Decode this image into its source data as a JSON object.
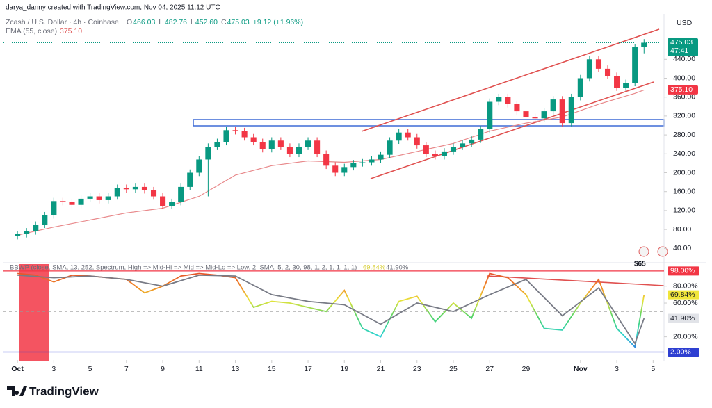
{
  "header": {
    "attribution": "darya_danny created with TradingView.com, Nov 04, 2025 11:12 UTC",
    "symbol": "Zcash / U.S. Dollar · 4h · Coinbase",
    "ohlc": [
      {
        "label": "O",
        "value": "466.03"
      },
      {
        "label": "H",
        "value": "482.76"
      },
      {
        "label": "L",
        "value": "452.60"
      },
      {
        "label": "C",
        "value": "475.03"
      }
    ],
    "change": "+9.12 (+1.96%)",
    "ema_legend": "EMA (55, close)",
    "ema_value": "375.10",
    "currency": "USD",
    "countdown": "47:41",
    "badge": "$65"
  },
  "footer": {
    "brand": "TradingView"
  },
  "chart_data": [
    {
      "type": "candlestick",
      "up_color": "#089981",
      "down_color": "#f23645",
      "x": [
        0,
        0.5,
        1,
        1.5,
        2,
        2.5,
        3,
        3.5,
        4,
        4.5,
        5,
        5.5,
        6,
        6.5,
        7,
        7.5,
        8,
        8.5,
        9,
        9.5,
        10,
        10.5,
        11,
        11.5,
        12,
        12.5,
        13,
        13.5,
        14,
        14.5,
        15,
        15.5,
        16,
        16.5,
        17,
        17.5,
        18,
        18.5,
        19,
        19.5,
        20,
        20.5,
        21,
        21.5,
        22,
        22.5,
        23,
        23.5,
        24,
        24.5,
        25,
        25.5,
        26,
        26.5,
        27,
        27.5,
        28,
        28.5,
        29,
        29.5,
        30,
        30.5,
        31,
        31.5,
        32,
        32.5,
        33,
        33.5,
        34,
        34.5
      ],
      "open": [
        66,
        70,
        76,
        90,
        110,
        140,
        138,
        132,
        145,
        150,
        142,
        150,
        168,
        165,
        170,
        163,
        150,
        130,
        138,
        170,
        200,
        228,
        255,
        265,
        290,
        288,
        275,
        265,
        250,
        268,
        255,
        240,
        255,
        268,
        240,
        215,
        200,
        212,
        220,
        222,
        228,
        238,
        268,
        285,
        275,
        258,
        240,
        235,
        245,
        255,
        262,
        270,
        292,
        350,
        360,
        345,
        330,
        318,
        315,
        330,
        355,
        305,
        360,
        400,
        440,
        420,
        405,
        380,
        390,
        466.03
      ],
      "high": [
        77,
        83,
        97,
        117,
        147,
        147,
        145,
        152,
        157,
        157,
        157,
        175,
        175,
        177,
        177,
        170,
        157,
        145,
        177,
        207,
        235,
        262,
        272,
        297,
        297,
        295,
        282,
        272,
        275,
        275,
        262,
        262,
        275,
        275,
        247,
        222,
        219,
        227,
        229,
        235,
        245,
        275,
        292,
        292,
        282,
        265,
        247,
        252,
        262,
        269,
        277,
        299,
        357,
        367,
        367,
        352,
        337,
        325,
        337,
        362,
        362,
        367,
        407,
        447,
        447,
        427,
        412,
        397,
        472,
        482.76
      ],
      "low": [
        59,
        63,
        69,
        83,
        103,
        131,
        125,
        125,
        138,
        135,
        135,
        143,
        158,
        158,
        156,
        143,
        123,
        123,
        131,
        163,
        193,
        150,
        248,
        258,
        281,
        268,
        258,
        243,
        243,
        248,
        233,
        233,
        248,
        233,
        208,
        193,
        193,
        205,
        213,
        215,
        221,
        231,
        261,
        268,
        251,
        233,
        228,
        228,
        238,
        248,
        255,
        263,
        285,
        343,
        338,
        323,
        311,
        308,
        308,
        323,
        298,
        298,
        353,
        393,
        413,
        398,
        373,
        373,
        383,
        452.6
      ],
      "close": [
        70,
        76,
        90,
        110,
        140,
        138,
        132,
        145,
        150,
        142,
        150,
        168,
        165,
        170,
        163,
        150,
        130,
        138,
        170,
        200,
        228,
        255,
        265,
        290,
        288,
        275,
        265,
        250,
        268,
        255,
        240,
        255,
        268,
        240,
        215,
        200,
        212,
        220,
        222,
        228,
        238,
        268,
        285,
        275,
        258,
        240,
        235,
        245,
        255,
        262,
        270,
        292,
        350,
        360,
        345,
        330,
        318,
        315,
        330,
        355,
        305,
        360,
        400,
        440,
        420,
        405,
        380,
        390,
        465.91,
        475.03
      ],
      "value_labels": {
        "last_close": "475.03"
      },
      "series": [
        {
          "name": "EMA (55, close)",
          "color": "#e8888a",
          "x": [
            0,
            2,
            4,
            6,
            8,
            10,
            12,
            14,
            16,
            18,
            20,
            22,
            24,
            26,
            28,
            30,
            32,
            34,
            34.5
          ],
          "values": [
            68,
            85,
            100,
            115,
            125,
            150,
            195,
            215,
            225,
            222,
            228,
            245,
            262,
            288,
            305,
            318,
            345,
            368,
            375.1
          ],
          "last_label": "375.10"
        }
      ],
      "xlim": [
        -0.77,
        35.6
      ],
      "xticks": [
        {
          "value": 0,
          "label": "Oct"
        },
        {
          "value": 2,
          "label": "3"
        },
        {
          "value": 4,
          "label": "5"
        },
        {
          "value": 6,
          "label": "7"
        },
        {
          "value": 8,
          "label": "9"
        },
        {
          "value": 10,
          "label": "11"
        },
        {
          "value": 12,
          "label": "13"
        },
        {
          "value": 14,
          "label": "15"
        },
        {
          "value": 16,
          "label": "17"
        },
        {
          "value": 18,
          "label": "19"
        },
        {
          "value": 20,
          "label": "21"
        },
        {
          "value": 22,
          "label": "23"
        },
        {
          "value": 24,
          "label": "25"
        },
        {
          "value": 26,
          "label": "27"
        },
        {
          "value": 28,
          "label": "29"
        },
        {
          "value": 31,
          "label": "Nov"
        },
        {
          "value": 33,
          "label": "3"
        },
        {
          "value": 35,
          "label": "5"
        }
      ],
      "ylim": [
        14,
        536
      ],
      "yticks": [
        {
          "value": 40,
          "label": "40.00"
        },
        {
          "value": 80,
          "label": "80.00"
        },
        {
          "value": 120,
          "label": "120.00"
        },
        {
          "value": 160,
          "label": "160.00"
        },
        {
          "value": 200,
          "label": "200.00"
        },
        {
          "value": 240,
          "label": "240.00"
        },
        {
          "value": 280,
          "label": "280.00"
        },
        {
          "value": 320,
          "label": "320.00"
        },
        {
          "value": 360,
          "label": "360.00"
        },
        {
          "value": 400,
          "label": "400.00"
        },
        {
          "value": 440,
          "label": "440.00"
        }
      ]
    },
    {
      "type": "line",
      "title": "BBWP (close, SMA, 13, 252, Spectrum, High => Mid-Hi => Mid => Mid-Lo => Low, 2, SMA, 5, 2, 30, 98, 1, 2, 1, 1, 1, 1)",
      "series": [
        {
          "color": "spectrum",
          "x": [
            0,
            1,
            2,
            3,
            4,
            5,
            6,
            7,
            8,
            9,
            10,
            11,
            12,
            13,
            14,
            15,
            16,
            17,
            18,
            19,
            20,
            21,
            22,
            23,
            24,
            25,
            26,
            27,
            28,
            29,
            30,
            31,
            32,
            33,
            34,
            34.5
          ],
          "values": [
            95,
            93,
            85,
            93,
            92,
            90,
            88,
            72,
            80,
            92,
            95,
            93,
            90,
            55,
            62,
            60,
            55,
            50,
            75,
            30,
            20,
            62,
            68,
            38,
            60,
            42,
            95,
            90,
            70,
            30,
            28,
            60,
            88,
            30,
            8,
            69.84
          ],
          "last_label": "69.84%"
        },
        {
          "color": "#787b86",
          "x": [
            0,
            2,
            4,
            6,
            8,
            10,
            12,
            14,
            16,
            18,
            20,
            22,
            24,
            26,
            28,
            30,
            32,
            33,
            34,
            34.5
          ],
          "values": [
            93,
            90,
            92,
            88,
            80,
            93,
            92,
            70,
            62,
            58,
            35,
            60,
            50,
            70,
            88,
            45,
            78,
            45,
            12,
            41.9
          ],
          "last_label": "41.90%"
        }
      ],
      "levels": [
        {
          "value": 98,
          "label": "98.00%",
          "color": "#f23645"
        },
        {
          "value": 2,
          "label": "2.00%",
          "color": "#2e3fd1"
        }
      ],
      "midline": 50,
      "ylim": [
        -5,
        102
      ],
      "yticks": [
        {
          "value": 20,
          "label": "20.00%"
        },
        {
          "value": 60,
          "label": "60.00%"
        },
        {
          "value": 80,
          "label": "80.00%"
        }
      ]
    }
  ]
}
